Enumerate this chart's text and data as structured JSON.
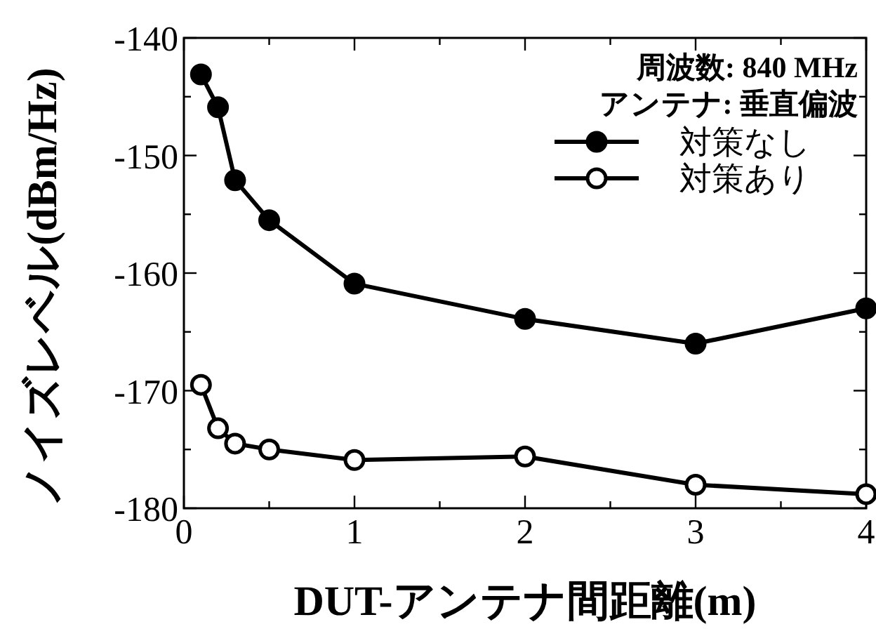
{
  "chart_data": {
    "type": "line",
    "xlabel": "DUT-アンテナ間距離(m)",
    "ylabel": "ノイズレベル(dBm/Hz)",
    "annotations": [
      "周波数: 840 MHz",
      "アンテナ: 垂直偏波"
    ],
    "x": [
      0.1,
      0.2,
      0.3,
      0.5,
      1,
      2,
      3,
      4
    ],
    "series": [
      {
        "name": "対策なし",
        "color": "#000000",
        "values": [
          -143.1,
          -145.9,
          -152.1,
          -155.5,
          -160.9,
          -163.9,
          -166.0,
          -163.0
        ]
      },
      {
        "name": "対策あり",
        "color": "#000000",
        "marker": "open circle",
        "values": [
          -169.5,
          -173.2,
          -174.5,
          -175.0,
          -175.9,
          -175.6,
          -178.0,
          -178.8
        ]
      }
    ],
    "xlim": [
      0,
      4
    ],
    "ylim": [
      -180,
      -140
    ],
    "xticks": [
      0,
      {
        "value": 0.5,
        "label": null
      },
      1,
      {
        "value": 1.5,
        "label": null
      },
      2,
      {
        "value": 2.5,
        "label": null
      },
      3,
      {
        "value": 3.5,
        "label": null
      },
      4
    ],
    "yticks": [
      -180,
      {
        "value": -175,
        "label": null
      },
      -170,
      {
        "value": -165,
        "label": null
      },
      -160,
      {
        "value": -155,
        "label": null
      },
      -150,
      {
        "value": -145,
        "label": null
      },
      -140
    ],
    "marker": "circle",
    "line_style": "solid",
    "legend": "top right",
    "grid": false
  }
}
